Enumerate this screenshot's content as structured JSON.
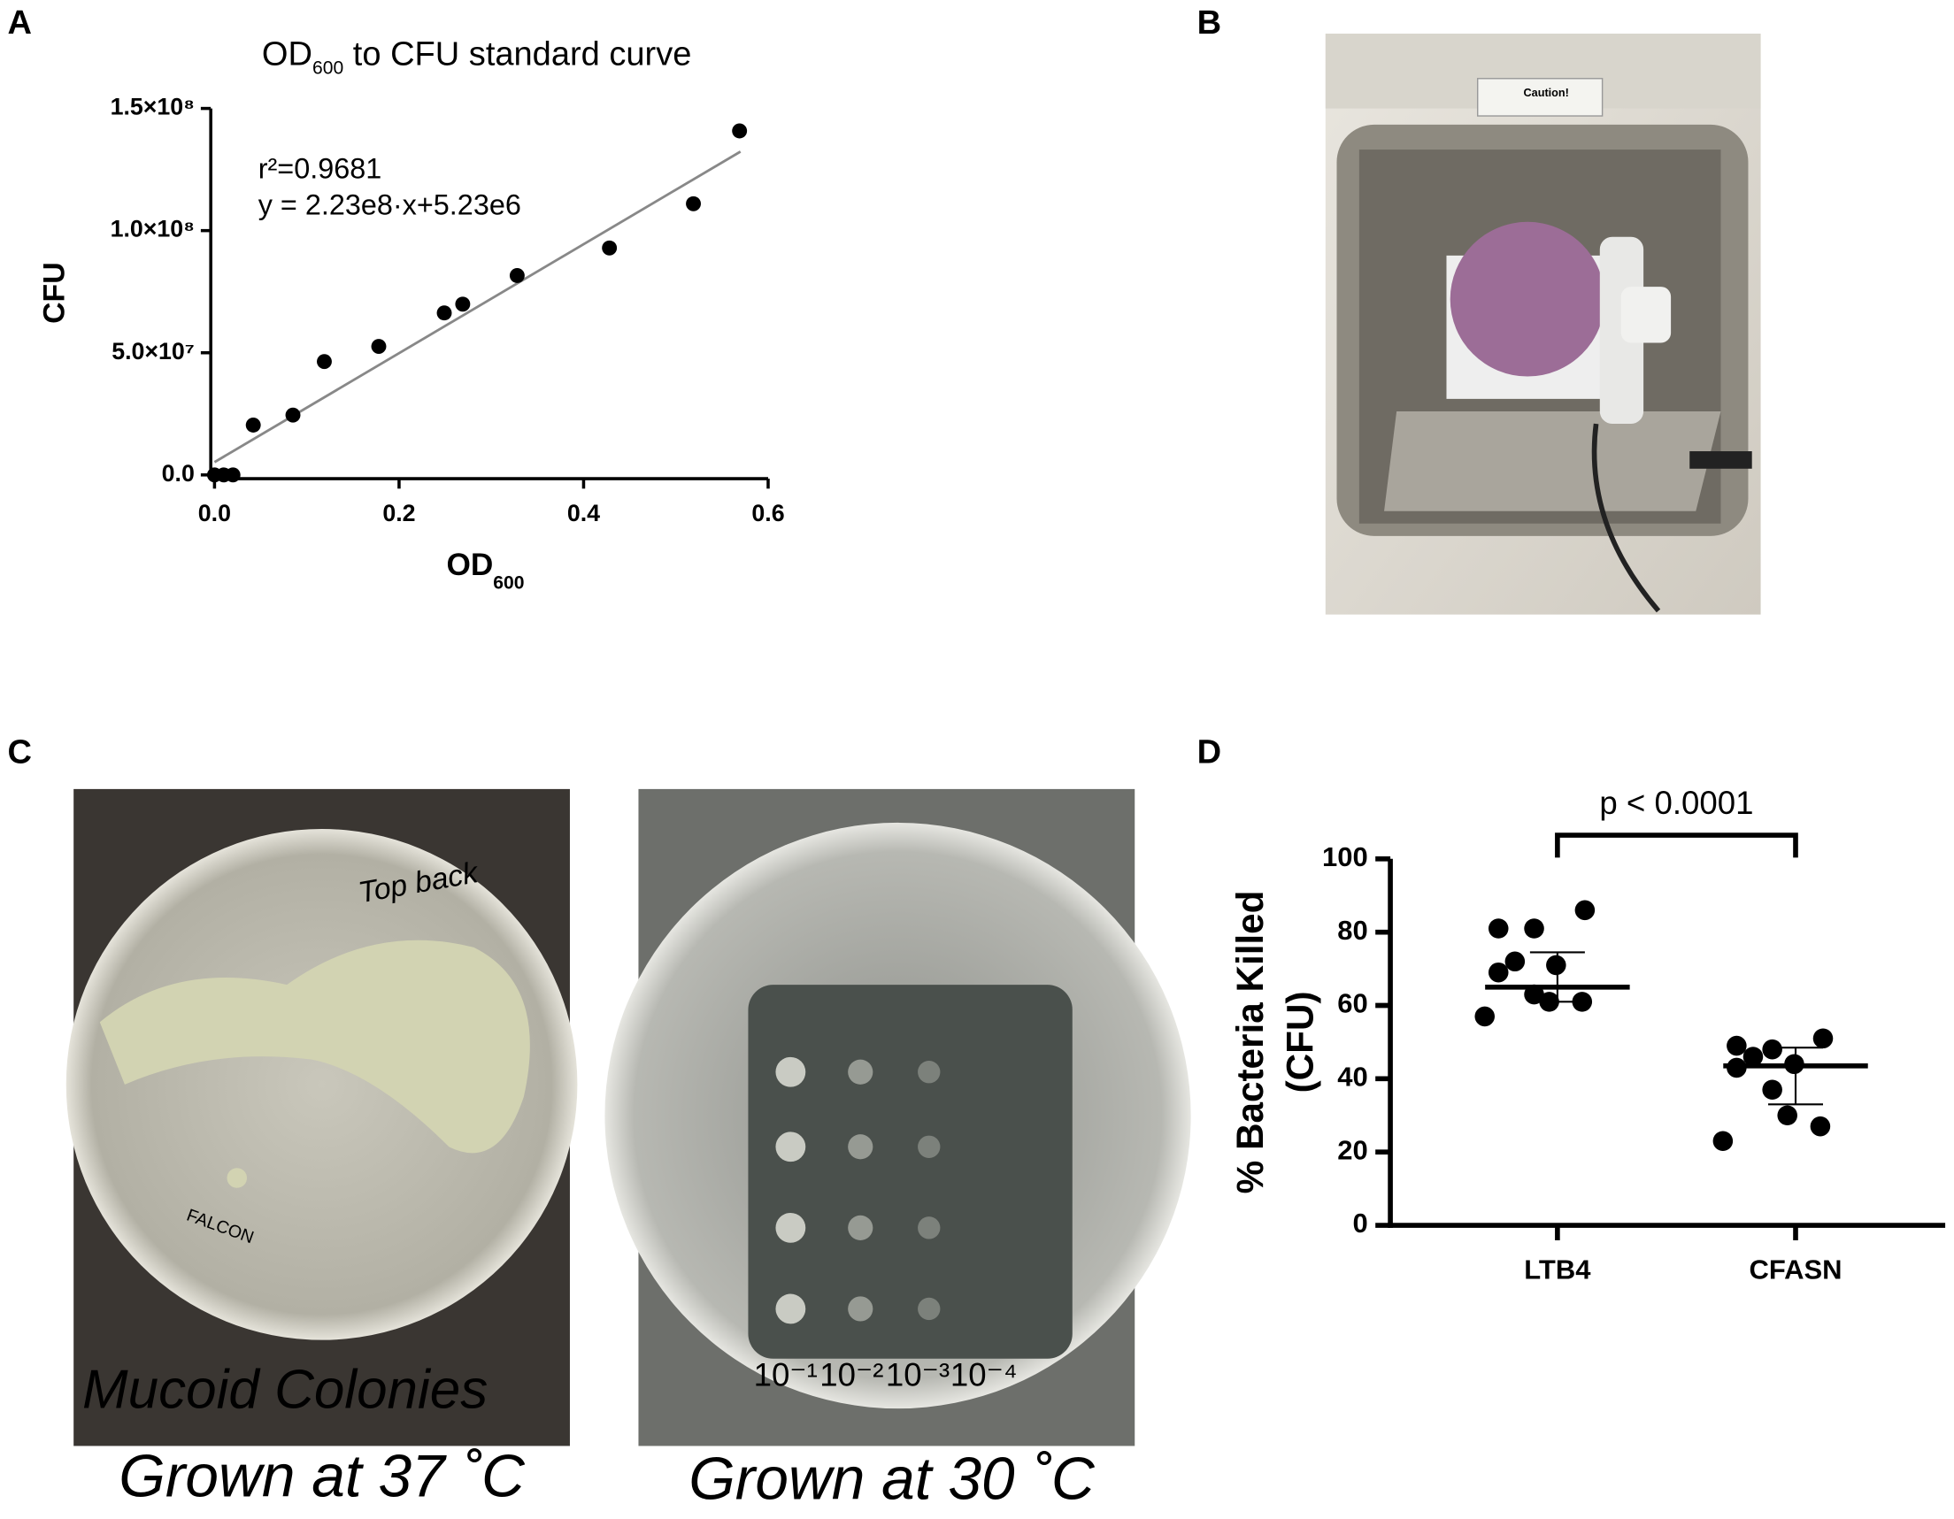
{
  "panel_labels": [
    "A",
    "B",
    "C",
    "D"
  ],
  "photos": {
    "B": {
      "sign": "Caution!"
    },
    "C_left": {
      "handwriting": "Top back",
      "brand": "FALCON",
      "overlay": "Mucoid Colonies",
      "caption": "Grown at 37 ˚C"
    },
    "C_right": {
      "dilutions": [
        "10⁻¹",
        "10⁻²",
        "10⁻³",
        "10⁻⁴"
      ],
      "caption": "Grown at 30 ˚C"
    }
  },
  "chart_data": [
    {
      "type": "scatter",
      "title": {
        "main": "OD",
        "sub": "600",
        "rest": " to CFU standard curve"
      },
      "x_label": {
        "main": "OD",
        "sub": "600"
      },
      "y_label": "CFU",
      "annotations": [
        "r²=0.9681",
        "y = 2.23e8·x+5.23e6"
      ],
      "x": [
        0,
        0.01,
        0.02,
        0.042,
        0.085,
        0.119,
        0.178,
        0.249,
        0.269,
        0.328,
        0.428,
        0.519,
        0.569
      ],
      "values": [
        0,
        0,
        0,
        20400000,
        24500000,
        46400000,
        52600000,
        66300000,
        69900000,
        81600000,
        92900000,
        111000000,
        140800000
      ],
      "color": "#000000",
      "fit": {
        "slope": 223000000,
        "intercept": 5230000,
        "x_range": [
          0,
          0.57
        ],
        "color": "#888888"
      },
      "xlim": [
        0,
        0.6
      ],
      "xticks": [
        {
          "value": 0,
          "label": "0.0"
        },
        {
          "value": 0.2,
          "label": "0.2"
        },
        {
          "value": 0.4,
          "label": "0.4"
        },
        {
          "value": 0.6,
          "label": "0.6"
        }
      ],
      "ylim": [
        0,
        150000000
      ],
      "yticks": [
        {
          "value": 0,
          "label": "0.0"
        },
        {
          "value": 50000000,
          "label": "5.0×10⁷"
        },
        {
          "value": 100000000,
          "label": "1.0×10⁸"
        },
        {
          "value": 150000000,
          "label": "1.5×10⁸"
        }
      ]
    },
    {
      "type": "dotplot",
      "y_label": [
        "% Bacteria Killed",
        "(CFU)"
      ],
      "categories": [
        "LTB4",
        "CFASN"
      ],
      "points": [
        [
          86,
          81,
          81,
          72,
          71,
          69,
          63,
          61,
          61,
          57
        ],
        [
          51,
          49,
          48,
          46,
          44,
          43,
          37,
          30,
          27,
          23
        ]
      ],
      "center": [
        65,
        43.5
      ],
      "error_low": [
        61,
        33
      ],
      "error_high": [
        74.5,
        48.5
      ],
      "color": "#000000",
      "significance": "p < 0.0001",
      "ylim": [
        0,
        100
      ],
      "yticks": [
        0,
        20,
        40,
        60,
        80,
        100
      ]
    }
  ]
}
